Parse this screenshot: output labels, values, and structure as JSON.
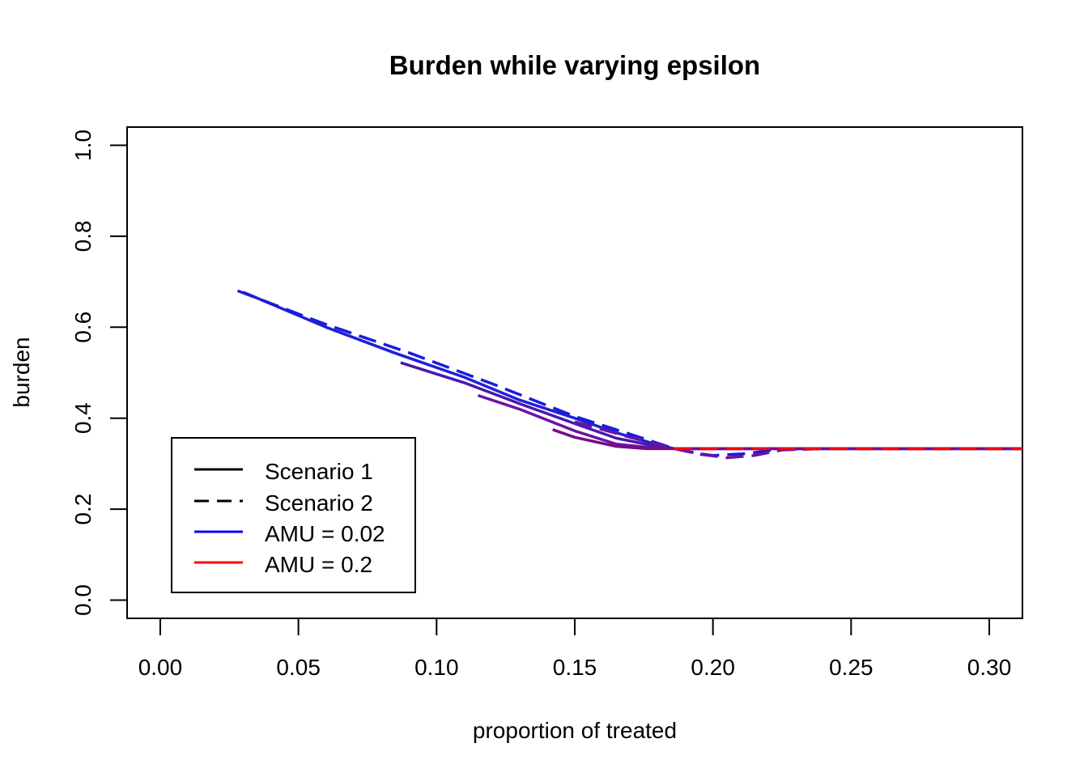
{
  "chart_data": {
    "type": "line",
    "title": "Burden while varying epsilon",
    "xlabel": "proportion of treated",
    "ylabel": "burden",
    "xlim": [
      -0.012,
      0.312
    ],
    "ylim": [
      -0.04,
      1.04
    ],
    "xticks": [
      "0.00",
      "0.05",
      "0.10",
      "0.15",
      "0.20",
      "0.25",
      "0.30"
    ],
    "yticks": [
      "0.0",
      "0.2",
      "0.4",
      "0.6",
      "0.8",
      "1.0"
    ],
    "grid": false,
    "legend_position": "bottom-left",
    "legend": [
      {
        "label": "Scenario 1",
        "color": "#000000",
        "dash": "solid"
      },
      {
        "label": "Scenario 2",
        "color": "#000000",
        "dash": "dashed"
      },
      {
        "label": "AMU = 0.02",
        "color": "#0000ff",
        "dash": "solid"
      },
      {
        "label": "AMU = 0.2",
        "color": "#ff0000",
        "dash": "solid"
      }
    ],
    "series": [
      {
        "scenario": 1,
        "color": "#2020d8",
        "x": [
          0.03,
          0.06,
          0.085,
          0.11,
          0.13,
          0.15,
          0.165,
          0.178,
          0.186,
          0.2,
          0.23,
          0.26,
          0.312
        ],
        "y": [
          0.677,
          0.6,
          0.543,
          0.49,
          0.44,
          0.4,
          0.368,
          0.345,
          0.333,
          0.333,
          0.333,
          0.333,
          0.333
        ]
      },
      {
        "scenario": 1,
        "color": "#4a18b0",
        "x": [
          0.087,
          0.11,
          0.13,
          0.15,
          0.165,
          0.178,
          0.186,
          0.2,
          0.24,
          0.312
        ],
        "y": [
          0.522,
          0.478,
          0.432,
          0.388,
          0.356,
          0.34,
          0.333,
          0.333,
          0.333,
          0.333
        ]
      },
      {
        "scenario": 1,
        "color": "#6a14a0",
        "x": [
          0.115,
          0.13,
          0.15,
          0.165,
          0.178,
          0.186,
          0.2,
          0.24,
          0.312
        ],
        "y": [
          0.45,
          0.42,
          0.372,
          0.343,
          0.335,
          0.333,
          0.333,
          0.333,
          0.333
        ]
      },
      {
        "scenario": 1,
        "color": "#7a0a8a",
        "x": [
          0.142,
          0.15,
          0.165,
          0.176,
          0.186,
          0.2,
          0.24,
          0.312
        ],
        "y": [
          0.375,
          0.358,
          0.338,
          0.333,
          0.333,
          0.333,
          0.333,
          0.333
        ]
      },
      {
        "scenario": 2,
        "color": "#1a1ae0",
        "x": [
          0.028,
          0.06,
          0.09,
          0.12,
          0.15,
          0.17,
          0.186,
          0.195,
          0.2,
          0.212,
          0.222,
          0.235,
          0.312
        ],
        "y": [
          0.68,
          0.606,
          0.544,
          0.476,
          0.404,
          0.365,
          0.333,
          0.322,
          0.318,
          0.322,
          0.33,
          0.333,
          0.333
        ]
      },
      {
        "scenario": 2,
        "color": "#6a14a0",
        "x": [
          0.15,
          0.17,
          0.186,
          0.196,
          0.205,
          0.215,
          0.225,
          0.24,
          0.312
        ],
        "y": [
          0.392,
          0.358,
          0.333,
          0.32,
          0.313,
          0.318,
          0.33,
          0.333,
          0.333
        ]
      },
      {
        "scenario": 2,
        "color": "#ff0000",
        "x": [
          0.186,
          0.312
        ],
        "y": [
          0.333,
          0.333
        ]
      }
    ]
  }
}
